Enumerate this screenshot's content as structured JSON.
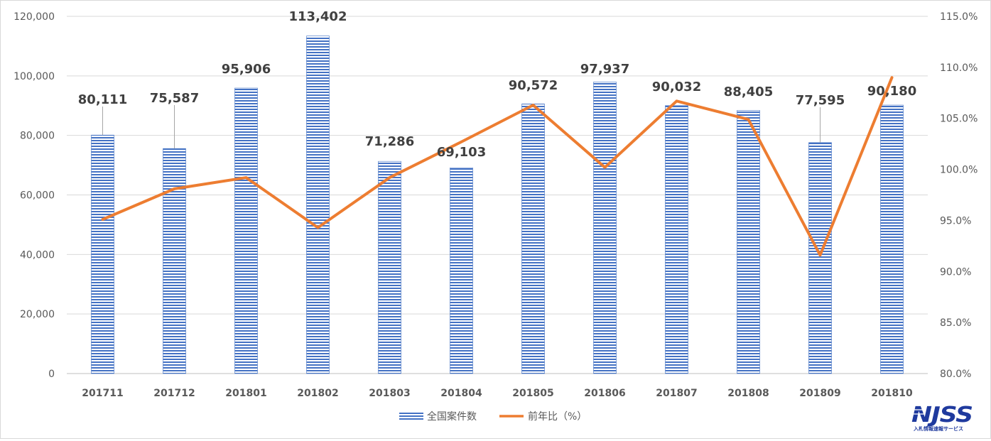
{
  "chart_data": {
    "type": "bar",
    "categories": [
      "201711",
      "201712",
      "201801",
      "201802",
      "201803",
      "201804",
      "201805",
      "201806",
      "201807",
      "201808",
      "201809",
      "201810"
    ],
    "series": [
      {
        "name": "全国案件数",
        "type": "bar",
        "axis": "left",
        "values": [
          80111,
          75587,
          95906,
          113402,
          71286,
          69103,
          90572,
          97937,
          90032,
          88405,
          77595,
          90180
        ],
        "labels": [
          "80,111",
          "75,587",
          "95,906",
          "113,402",
          "71,286",
          "69,103",
          "90,572",
          "97,937",
          "90,032",
          "88,405",
          "77,595",
          "90,180"
        ],
        "color": "#4472c4"
      },
      {
        "name": "前年比（%）",
        "type": "line",
        "axis": "right",
        "values": [
          95.1,
          98.1,
          99.2,
          94.3,
          99.2,
          102.7,
          106.3,
          100.2,
          106.7,
          104.9,
          91.6,
          109.0
        ],
        "color": "#ed7d31"
      }
    ],
    "y_left": {
      "min": 0,
      "max": 120000,
      "ticks": [
        "0",
        "20,000",
        "40,000",
        "60,000",
        "80,000",
        "100,000",
        "120,000"
      ],
      "tick_values": [
        0,
        20000,
        40000,
        60000,
        80000,
        100000,
        120000
      ]
    },
    "y_right": {
      "min": 80,
      "max": 115,
      "ticks": [
        "80.0%",
        "85.0%",
        "90.0%",
        "95.0%",
        "100.0%",
        "105.0%",
        "110.0%",
        "115.0%"
      ],
      "tick_values": [
        80,
        85,
        90,
        95,
        100,
        105,
        110,
        115
      ]
    },
    "grid": true,
    "legend": "bottom-center"
  },
  "legend": {
    "bar_label": "全国案件数",
    "line_label": "前年比（%）"
  },
  "logo": {
    "text": "NJSS",
    "subtitle": "入札情報速報サービス"
  }
}
